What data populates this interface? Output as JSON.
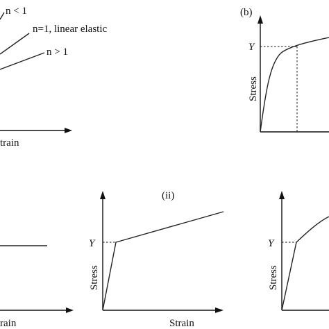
{
  "panel_a": {
    "curve_labels": [
      "n < 1",
      "n=1, linear elastic",
      "n > 1"
    ],
    "x_label": "train"
  },
  "panel_b": {
    "panel_label": "(b)",
    "y_marker": "Y",
    "y_label": "Stress"
  },
  "panel_i": {
    "x_label": "rain"
  },
  "panel_ii": {
    "panel_label": "(ii)",
    "y_marker": "Y",
    "y_label": "Stress",
    "x_label": "Strain"
  },
  "panel_iii": {
    "y_marker": "Y",
    "y_label": "Stress"
  }
}
